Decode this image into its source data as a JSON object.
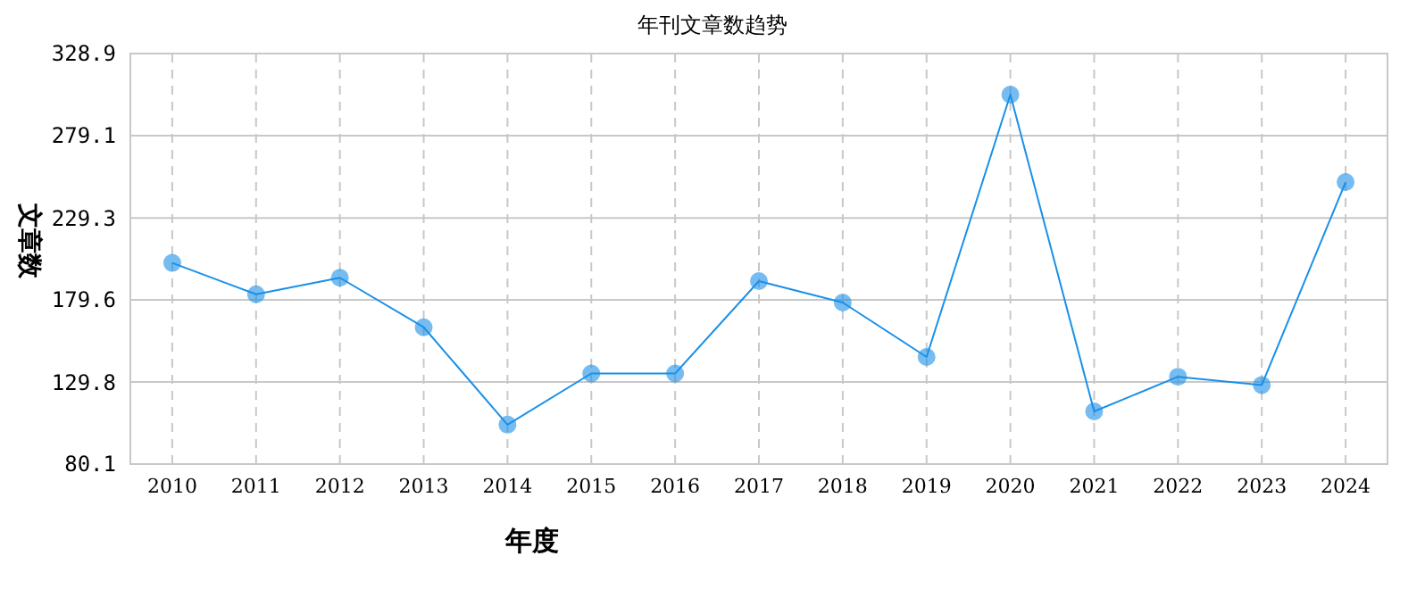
{
  "chart_data": {
    "type": "line",
    "title": "年刊文章数趋势",
    "xlabel": "年度",
    "ylabel": "文章数",
    "categories": [
      "2010",
      "2011",
      "2012",
      "2013",
      "2014",
      "2015",
      "2016",
      "2017",
      "2018",
      "2019",
      "2020",
      "2021",
      "2022",
      "2023",
      "2024"
    ],
    "series": [
      {
        "color": "#1a90e8",
        "values": [
          202,
          183,
          193,
          163,
          104,
          135,
          135,
          191,
          178,
          145,
          304,
          112,
          133,
          128,
          251
        ]
      }
    ],
    "ylim": [
      80.1,
      328.9
    ],
    "yticks": [
      80.1,
      129.8,
      179.6,
      229.3,
      279.1,
      328.9
    ],
    "grid": true,
    "marker": "circle",
    "line_style": "solid"
  }
}
